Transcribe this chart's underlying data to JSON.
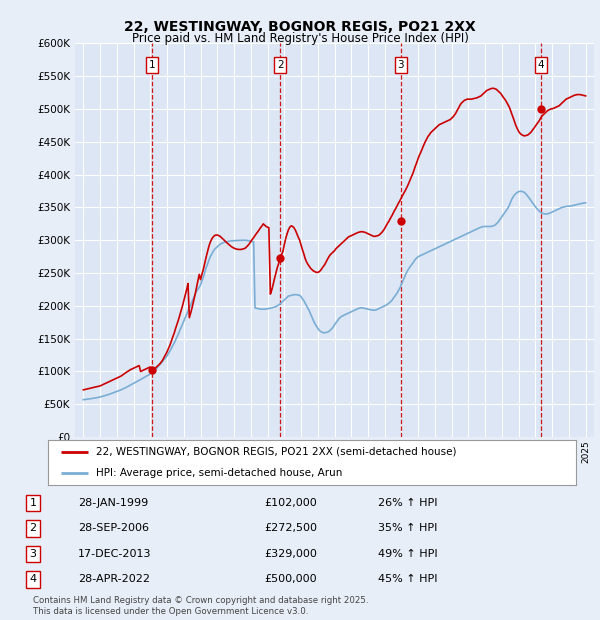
{
  "title": "22, WESTINGWAY, BOGNOR REGIS, PO21 2XX",
  "subtitle": "Price paid vs. HM Land Registry's House Price Index (HPI)",
  "background_color": "#e8eef8",
  "plot_bg_color": "#dce6f5",
  "grid_color": "#ffffff",
  "sale_dates": [
    1999.08,
    2006.75,
    2013.96,
    2022.33
  ],
  "sale_prices": [
    102000,
    272500,
    329000,
    500000
  ],
  "sale_labels": [
    "1",
    "2",
    "3",
    "4"
  ],
  "hpi_line_color": "#7aadd4",
  "price_line_color": "#cc0000",
  "vline_color": "#cc0000",
  "ylim": [
    0,
    600000
  ],
  "yticks": [
    0,
    50000,
    100000,
    150000,
    200000,
    250000,
    300000,
    350000,
    400000,
    450000,
    500000,
    550000,
    600000
  ],
  "xlim": [
    1994.5,
    2025.5
  ],
  "legend_entries": [
    "22, WESTINGWAY, BOGNOR REGIS, PO21 2XX (semi-detached house)",
    "HPI: Average price, semi-detached house, Arun"
  ],
  "table_data": [
    [
      "1",
      "28-JAN-1999",
      "£102,000",
      "26% ↑ HPI"
    ],
    [
      "2",
      "28-SEP-2006",
      "£272,500",
      "35% ↑ HPI"
    ],
    [
      "3",
      "17-DEC-2013",
      "£329,000",
      "49% ↑ HPI"
    ],
    [
      "4",
      "28-APR-2022",
      "£500,000",
      "45% ↑ HPI"
    ]
  ],
  "footnote": "Contains HM Land Registry data © Crown copyright and database right 2025.\nThis data is licensed under the Open Government Licence v3.0.",
  "hpi_data_x": [
    1995.0,
    1995.08,
    1995.17,
    1995.25,
    1995.33,
    1995.42,
    1995.5,
    1995.58,
    1995.67,
    1995.75,
    1995.83,
    1995.92,
    1996.0,
    1996.08,
    1996.17,
    1996.25,
    1996.33,
    1996.42,
    1996.5,
    1996.58,
    1996.67,
    1996.75,
    1996.83,
    1996.92,
    1997.0,
    1997.08,
    1997.17,
    1997.25,
    1997.33,
    1997.42,
    1997.5,
    1997.58,
    1997.67,
    1997.75,
    1997.83,
    1997.92,
    1998.0,
    1998.08,
    1998.17,
    1998.25,
    1998.33,
    1998.42,
    1998.5,
    1998.58,
    1998.67,
    1998.75,
    1998.83,
    1998.92,
    1999.0,
    1999.08,
    1999.17,
    1999.25,
    1999.33,
    1999.42,
    1999.5,
    1999.58,
    1999.67,
    1999.75,
    1999.83,
    1999.92,
    2000.0,
    2000.08,
    2000.17,
    2000.25,
    2000.33,
    2000.42,
    2000.5,
    2000.58,
    2000.67,
    2000.75,
    2000.83,
    2000.92,
    2001.0,
    2001.08,
    2001.17,
    2001.25,
    2001.33,
    2001.42,
    2001.5,
    2001.58,
    2001.67,
    2001.75,
    2001.83,
    2001.92,
    2002.0,
    2002.08,
    2002.17,
    2002.25,
    2002.33,
    2002.42,
    2002.5,
    2002.58,
    2002.67,
    2002.75,
    2002.83,
    2002.92,
    2003.0,
    2003.08,
    2003.17,
    2003.25,
    2003.33,
    2003.42,
    2003.5,
    2003.58,
    2003.67,
    2003.75,
    2003.83,
    2003.92,
    2004.0,
    2004.08,
    2004.17,
    2004.25,
    2004.33,
    2004.42,
    2004.5,
    2004.58,
    2004.67,
    2004.75,
    2004.83,
    2004.92,
    2005.0,
    2005.08,
    2005.17,
    2005.25,
    2005.33,
    2005.42,
    2005.5,
    2005.58,
    2005.67,
    2005.75,
    2005.83,
    2005.92,
    2006.0,
    2006.08,
    2006.17,
    2006.25,
    2006.33,
    2006.42,
    2006.5,
    2006.58,
    2006.67,
    2006.75,
    2006.83,
    2006.92,
    2007.0,
    2007.08,
    2007.17,
    2007.25,
    2007.33,
    2007.42,
    2007.5,
    2007.58,
    2007.67,
    2007.75,
    2007.83,
    2007.92,
    2008.0,
    2008.08,
    2008.17,
    2008.25,
    2008.33,
    2008.42,
    2008.5,
    2008.58,
    2008.67,
    2008.75,
    2008.83,
    2008.92,
    2009.0,
    2009.08,
    2009.17,
    2009.25,
    2009.33,
    2009.42,
    2009.5,
    2009.58,
    2009.67,
    2009.75,
    2009.83,
    2009.92,
    2010.0,
    2010.08,
    2010.17,
    2010.25,
    2010.33,
    2010.42,
    2010.5,
    2010.58,
    2010.67,
    2010.75,
    2010.83,
    2010.92,
    2011.0,
    2011.08,
    2011.17,
    2011.25,
    2011.33,
    2011.42,
    2011.5,
    2011.58,
    2011.67,
    2011.75,
    2011.83,
    2011.92,
    2012.0,
    2012.08,
    2012.17,
    2012.25,
    2012.33,
    2012.42,
    2012.5,
    2012.58,
    2012.67,
    2012.75,
    2012.83,
    2012.92,
    2013.0,
    2013.08,
    2013.17,
    2013.25,
    2013.33,
    2013.42,
    2013.5,
    2013.58,
    2013.67,
    2013.75,
    2013.83,
    2013.92,
    2014.0,
    2014.08,
    2014.17,
    2014.25,
    2014.33,
    2014.42,
    2014.5,
    2014.58,
    2014.67,
    2014.75,
    2014.83,
    2014.92,
    2015.0,
    2015.08,
    2015.17,
    2015.25,
    2015.33,
    2015.42,
    2015.5,
    2015.58,
    2015.67,
    2015.75,
    2015.83,
    2015.92,
    2016.0,
    2016.08,
    2016.17,
    2016.25,
    2016.33,
    2016.42,
    2016.5,
    2016.58,
    2016.67,
    2016.75,
    2016.83,
    2016.92,
    2017.0,
    2017.08,
    2017.17,
    2017.25,
    2017.33,
    2017.42,
    2017.5,
    2017.58,
    2017.67,
    2017.75,
    2017.83,
    2017.92,
    2018.0,
    2018.08,
    2018.17,
    2018.25,
    2018.33,
    2018.42,
    2018.5,
    2018.58,
    2018.67,
    2018.75,
    2018.83,
    2018.92,
    2019.0,
    2019.08,
    2019.17,
    2019.25,
    2019.33,
    2019.42,
    2019.5,
    2019.58,
    2019.67,
    2019.75,
    2019.83,
    2019.92,
    2020.0,
    2020.08,
    2020.17,
    2020.25,
    2020.33,
    2020.42,
    2020.5,
    2020.58,
    2020.67,
    2020.75,
    2020.83,
    2020.92,
    2021.0,
    2021.08,
    2021.17,
    2021.25,
    2021.33,
    2021.42,
    2021.5,
    2021.58,
    2021.67,
    2021.75,
    2021.83,
    2021.92,
    2022.0,
    2022.08,
    2022.17,
    2022.25,
    2022.33,
    2022.42,
    2022.5,
    2022.58,
    2022.67,
    2022.75,
    2022.83,
    2022.92,
    2023.0,
    2023.08,
    2023.17,
    2023.25,
    2023.33,
    2023.42,
    2023.5,
    2023.58,
    2023.67,
    2023.75,
    2023.83,
    2023.92,
    2024.0,
    2024.08,
    2024.17,
    2024.25,
    2024.33,
    2024.42,
    2024.5,
    2024.58,
    2024.67,
    2024.75,
    2024.83,
    2024.92,
    2025.0
  ],
  "hpi_data_y": [
    57000,
    57200,
    57500,
    57800,
    58100,
    58400,
    58700,
    59000,
    59400,
    59800,
    60200,
    60700,
    61200,
    61700,
    62300,
    62900,
    63500,
    64200,
    64900,
    65600,
    66400,
    67200,
    68000,
    68800,
    69600,
    70400,
    71200,
    72100,
    73000,
    74000,
    75000,
    76100,
    77200,
    78300,
    79400,
    80600,
    81800,
    83000,
    84200,
    85400,
    86600,
    87800,
    89000,
    90200,
    91400,
    92600,
    93800,
    95000,
    96500,
    98200,
    100000,
    102000,
    104000,
    106000,
    108500,
    111000,
    113500,
    116000,
    118500,
    121000,
    124000,
    127500,
    131000,
    135000,
    139000,
    143000,
    147500,
    152000,
    157000,
    162000,
    167000,
    172000,
    177000,
    182000,
    187000,
    192000,
    197000,
    202000,
    207000,
    212000,
    217000,
    222000,
    225000,
    228000,
    232000,
    238000,
    244000,
    251000,
    258000,
    264000,
    270000,
    275000,
    279000,
    283000,
    286000,
    288000,
    290000,
    292000,
    294000,
    295000,
    296000,
    297000,
    297500,
    298000,
    298500,
    298800,
    299000,
    299200,
    299400,
    299500,
    299600,
    299700,
    299800,
    299900,
    300000,
    300000,
    300000,
    299800,
    299500,
    299000,
    298500,
    298000,
    297500,
    197000,
    196500,
    196000,
    195500,
    195000,
    195000,
    195000,
    195000,
    195200,
    195500,
    196000,
    196500,
    197000,
    197500,
    198000,
    199000,
    200000,
    201500,
    203000,
    205000,
    207000,
    209000,
    211000,
    213000,
    215000,
    215500,
    216000,
    216500,
    217000,
    217000,
    217000,
    216500,
    216000,
    214000,
    211000,
    208000,
    204000,
    200000,
    196000,
    192000,
    187000,
    182000,
    177000,
    173000,
    169000,
    166000,
    163000,
    161000,
    160000,
    159000,
    159000,
    159500,
    160000,
    161000,
    163000,
    165000,
    168000,
    171000,
    174000,
    177000,
    180000,
    182000,
    184000,
    185000,
    186000,
    187000,
    188000,
    189000,
    190000,
    191000,
    192000,
    193000,
    194000,
    195000,
    196000,
    196500,
    197000,
    197000,
    196500,
    196000,
    195500,
    195000,
    194500,
    194000,
    193500,
    193500,
    193500,
    194000,
    195000,
    196000,
    197000,
    198000,
    199000,
    200000,
    201000,
    202500,
    204000,
    206000,
    208000,
    211000,
    214000,
    217000,
    220000,
    224000,
    228000,
    233000,
    238000,
    243000,
    248000,
    252000,
    256000,
    259000,
    262000,
    265000,
    268000,
    271000,
    273000,
    275000,
    276000,
    277000,
    278000,
    279000,
    280000,
    281000,
    282000,
    283000,
    284000,
    285000,
    286000,
    287000,
    288000,
    289000,
    290000,
    291000,
    292000,
    293000,
    294000,
    295000,
    296000,
    297000,
    298000,
    299000,
    300000,
    301000,
    302000,
    303000,
    304000,
    305000,
    306000,
    307000,
    308000,
    309000,
    310000,
    311000,
    312000,
    313000,
    314000,
    315000,
    316000,
    317000,
    318000,
    319000,
    320000,
    320500,
    321000,
    321000,
    321000,
    321000,
    321000,
    321000,
    321500,
    322000,
    323000,
    325000,
    327000,
    330000,
    333000,
    336000,
    339000,
    342000,
    345000,
    348000,
    352000,
    357000,
    362000,
    366000,
    369000,
    371000,
    373000,
    374000,
    374500,
    374500,
    374000,
    373000,
    371000,
    368500,
    366000,
    363000,
    360000,
    357000,
    354000,
    351000,
    348500,
    346000,
    344000,
    342000,
    341000,
    340500,
    340000,
    340000,
    340500,
    341000,
    342000,
    343000,
    344000,
    345000,
    346000,
    347000,
    348000,
    349000,
    350000,
    350500,
    351000,
    351500,
    352000,
    352000,
    352000,
    352500,
    353000,
    353500,
    354000,
    354500,
    355000,
    355500,
    356000,
    356500,
    357000,
    357000
  ],
  "price_data_x": [
    1995.0,
    1995.08,
    1995.17,
    1995.25,
    1995.33,
    1995.42,
    1995.5,
    1995.58,
    1995.67,
    1995.75,
    1995.83,
    1995.92,
    1996.0,
    1996.08,
    1996.17,
    1996.25,
    1996.33,
    1996.42,
    1996.5,
    1996.58,
    1996.67,
    1996.75,
    1996.83,
    1996.92,
    1997.0,
    1997.08,
    1997.17,
    1997.25,
    1997.33,
    1997.42,
    1997.5,
    1997.58,
    1997.67,
    1997.75,
    1997.83,
    1997.92,
    1998.0,
    1998.08,
    1998.17,
    1998.25,
    1998.33,
    1998.42,
    1998.5,
    1998.58,
    1998.67,
    1998.75,
    1998.83,
    1998.92,
    1999.0,
    1999.08,
    1999.17,
    1999.25,
    1999.33,
    1999.42,
    1999.5,
    1999.58,
    1999.67,
    1999.75,
    1999.83,
    1999.92,
    2000.0,
    2000.08,
    2000.17,
    2000.25,
    2000.33,
    2000.42,
    2000.5,
    2000.58,
    2000.67,
    2000.75,
    2000.83,
    2000.92,
    2001.0,
    2001.08,
    2001.17,
    2001.25,
    2001.33,
    2001.42,
    2001.5,
    2001.58,
    2001.67,
    2001.75,
    2001.83,
    2001.92,
    2002.0,
    2002.08,
    2002.17,
    2002.25,
    2002.33,
    2002.42,
    2002.5,
    2002.58,
    2002.67,
    2002.75,
    2002.83,
    2002.92,
    2003.0,
    2003.08,
    2003.17,
    2003.25,
    2003.33,
    2003.42,
    2003.5,
    2003.58,
    2003.67,
    2003.75,
    2003.83,
    2003.92,
    2004.0,
    2004.08,
    2004.17,
    2004.25,
    2004.33,
    2004.42,
    2004.5,
    2004.58,
    2004.67,
    2004.75,
    2004.83,
    2004.92,
    2005.0,
    2005.08,
    2005.17,
    2005.25,
    2005.33,
    2005.42,
    2005.5,
    2005.58,
    2005.67,
    2005.75,
    2005.83,
    2005.92,
    2006.0,
    2006.08,
    2006.17,
    2006.25,
    2006.33,
    2006.42,
    2006.5,
    2006.58,
    2006.67,
    2006.75,
    2006.83,
    2006.92,
    2007.0,
    2007.08,
    2007.17,
    2007.25,
    2007.33,
    2007.42,
    2007.5,
    2007.58,
    2007.67,
    2007.75,
    2007.83,
    2007.92,
    2008.0,
    2008.08,
    2008.17,
    2008.25,
    2008.33,
    2008.42,
    2008.5,
    2008.58,
    2008.67,
    2008.75,
    2008.83,
    2008.92,
    2009.0,
    2009.08,
    2009.17,
    2009.25,
    2009.33,
    2009.42,
    2009.5,
    2009.58,
    2009.67,
    2009.75,
    2009.83,
    2009.92,
    2010.0,
    2010.08,
    2010.17,
    2010.25,
    2010.33,
    2010.42,
    2010.5,
    2010.58,
    2010.67,
    2010.75,
    2010.83,
    2010.92,
    2011.0,
    2011.08,
    2011.17,
    2011.25,
    2011.33,
    2011.42,
    2011.5,
    2011.58,
    2011.67,
    2011.75,
    2011.83,
    2011.92,
    2012.0,
    2012.08,
    2012.17,
    2012.25,
    2012.33,
    2012.42,
    2012.5,
    2012.58,
    2012.67,
    2012.75,
    2012.83,
    2012.92,
    2013.0,
    2013.08,
    2013.17,
    2013.25,
    2013.33,
    2013.42,
    2013.5,
    2013.58,
    2013.67,
    2013.75,
    2013.83,
    2013.92,
    2014.0,
    2014.08,
    2014.17,
    2014.25,
    2014.33,
    2014.42,
    2014.5,
    2014.58,
    2014.67,
    2014.75,
    2014.83,
    2014.92,
    2015.0,
    2015.08,
    2015.17,
    2015.25,
    2015.33,
    2015.42,
    2015.5,
    2015.58,
    2015.67,
    2015.75,
    2015.83,
    2015.92,
    2016.0,
    2016.08,
    2016.17,
    2016.25,
    2016.33,
    2016.42,
    2016.5,
    2016.58,
    2016.67,
    2016.75,
    2016.83,
    2016.92,
    2017.0,
    2017.08,
    2017.17,
    2017.25,
    2017.33,
    2017.42,
    2017.5,
    2017.58,
    2017.67,
    2017.75,
    2017.83,
    2017.92,
    2018.0,
    2018.08,
    2018.17,
    2018.25,
    2018.33,
    2018.42,
    2018.5,
    2018.58,
    2018.67,
    2018.75,
    2018.83,
    2018.92,
    2019.0,
    2019.08,
    2019.17,
    2019.25,
    2019.33,
    2019.42,
    2019.5,
    2019.58,
    2019.67,
    2019.75,
    2019.83,
    2019.92,
    2020.0,
    2020.08,
    2020.17,
    2020.25,
    2020.33,
    2020.42,
    2020.5,
    2020.58,
    2020.67,
    2020.75,
    2020.83,
    2020.92,
    2021.0,
    2021.08,
    2021.17,
    2021.25,
    2021.33,
    2021.42,
    2021.5,
    2021.58,
    2021.67,
    2021.75,
    2021.83,
    2021.92,
    2022.0,
    2022.08,
    2022.17,
    2022.25,
    2022.33,
    2022.42,
    2022.5,
    2022.58,
    2022.67,
    2022.75,
    2022.83,
    2022.92,
    2023.0,
    2023.08,
    2023.17,
    2023.25,
    2023.33,
    2023.42,
    2023.5,
    2023.58,
    2023.67,
    2023.75,
    2023.83,
    2023.92,
    2024.0,
    2024.08,
    2024.17,
    2024.25,
    2024.33,
    2024.42,
    2024.5,
    2024.58,
    2024.67,
    2024.75,
    2024.83,
    2024.92,
    2025.0
  ],
  "price_data_y": [
    72000,
    72500,
    73000,
    73500,
    74000,
    74500,
    75000,
    75500,
    76000,
    76500,
    77000,
    77500,
    78000,
    79000,
    80000,
    81000,
    82000,
    83000,
    84000,
    85000,
    86000,
    87000,
    88000,
    89000,
    90000,
    91000,
    92000,
    93000,
    94500,
    96000,
    97500,
    99000,
    100500,
    102000,
    103000,
    104000,
    105000,
    106000,
    107000,
    108000,
    109000,
    100000,
    101000,
    102000,
    103000,
    104000,
    105000,
    106000,
    107000,
    102000,
    103000,
    104000,
    106000,
    108000,
    110000,
    112000,
    115000,
    118000,
    122000,
    126000,
    130000,
    135000,
    140000,
    146000,
    152000,
    158000,
    165000,
    171000,
    178000,
    185000,
    192000,
    200000,
    208000,
    216000,
    225000,
    234000,
    182000,
    190000,
    198000,
    207000,
    217000,
    227000,
    237000,
    248000,
    240000,
    248000,
    256000,
    265000,
    274000,
    283000,
    291000,
    297000,
    302000,
    305000,
    307000,
    308000,
    308000,
    307000,
    306000,
    304000,
    302000,
    300000,
    298000,
    296000,
    294000,
    292000,
    290500,
    289000,
    288000,
    287000,
    286500,
    286000,
    286000,
    286000,
    286500,
    287000,
    288000,
    290000,
    292000,
    295000,
    298000,
    301000,
    304000,
    307000,
    310000,
    313000,
    316000,
    319000,
    322000,
    325000,
    323000,
    321000,
    320000,
    319000,
    218000,
    224000,
    232000,
    242000,
    250000,
    258000,
    265000,
    272500,
    278000,
    283000,
    293000,
    302000,
    310000,
    316000,
    320000,
    322000,
    321000,
    319000,
    315000,
    310000,
    305000,
    300000,
    293000,
    286000,
    279000,
    272000,
    267000,
    263000,
    260000,
    257000,
    255000,
    253000,
    252000,
    251000,
    251000,
    252000,
    254000,
    257000,
    260000,
    263000,
    267000,
    271000,
    275000,
    278000,
    280000,
    282000,
    284000,
    287000,
    289000,
    291000,
    293000,
    295000,
    297000,
    299000,
    301000,
    303000,
    305000,
    306000,
    307000,
    308000,
    309000,
    310000,
    311000,
    312000,
    312500,
    313000,
    313000,
    312500,
    312000,
    311000,
    310000,
    309000,
    308000,
    307000,
    306000,
    306000,
    306500,
    307000,
    308000,
    310000,
    312000,
    315000,
    318000,
    322000,
    326000,
    329000,
    333000,
    337000,
    341000,
    345000,
    349000,
    353000,
    357000,
    361000,
    365000,
    369000,
    373000,
    377000,
    381000,
    386000,
    391000,
    396000,
    401000,
    407000,
    413000,
    419000,
    425000,
    430000,
    435000,
    440000,
    445000,
    450000,
    454000,
    458000,
    461000,
    464000,
    466000,
    468000,
    470000,
    472000,
    474000,
    476000,
    477000,
    478000,
    479000,
    480000,
    481000,
    482000,
    483000,
    484000,
    486000,
    488000,
    491000,
    494000,
    498000,
    502000,
    506000,
    509000,
    511000,
    513000,
    514000,
    515000,
    515000,
    515000,
    515000,
    515500,
    516000,
    516500,
    517000,
    518000,
    519000,
    520000,
    522000,
    524000,
    526000,
    528000,
    529000,
    530000,
    531000,
    531500,
    531500,
    531000,
    530000,
    528000,
    526000,
    524000,
    521000,
    518000,
    515000,
    512000,
    508000,
    504000,
    499000,
    493000,
    487000,
    481000,
    475000,
    470000,
    466000,
    463000,
    461000,
    460000,
    459000,
    459500,
    460000,
    461000,
    463000,
    465000,
    468000,
    471000,
    474000,
    477000,
    480000,
    483000,
    487000,
    490000,
    492000,
    494000,
    496000,
    498000,
    499000,
    500000,
    500500,
    501000,
    502000,
    503000,
    504000,
    505000,
    507000,
    509000,
    511000,
    513000,
    515000,
    516000,
    517000,
    518000,
    519000,
    520000,
    521000,
    521500,
    522000,
    522000,
    522000,
    521500,
    521000,
    520500,
    520000
  ]
}
